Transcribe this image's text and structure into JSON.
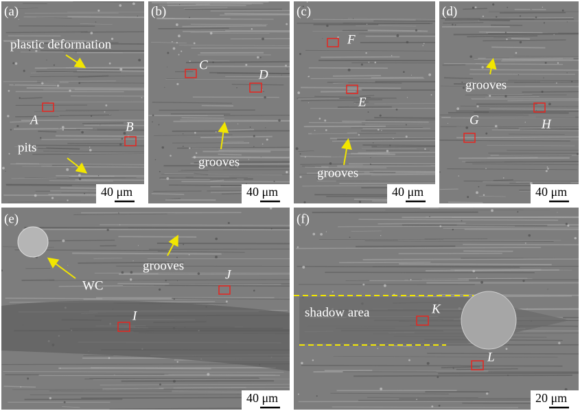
{
  "panels": [
    {
      "label": "(a)",
      "scale_bar": "40 μm",
      "annotations": [
        "plastic deformation",
        "pits"
      ],
      "points": [
        "A",
        "B"
      ]
    },
    {
      "label": "(b)",
      "scale_bar": "40 μm",
      "annotations": [
        "grooves"
      ],
      "points": [
        "C",
        "D"
      ]
    },
    {
      "label": "(c)",
      "scale_bar": "40 μm",
      "annotations": [
        "grooves"
      ],
      "points": [
        "F",
        "E"
      ]
    },
    {
      "label": "(d)",
      "scale_bar": "40 μm",
      "annotations": [
        "grooves"
      ],
      "points": [
        "G",
        "H"
      ]
    },
    {
      "label": "(e)",
      "scale_bar": "40 μm",
      "annotations": [
        "WC",
        "grooves"
      ],
      "points": [
        "J",
        "I"
      ]
    },
    {
      "label": "(f)",
      "scale_bar": "20 μm",
      "annotations": [
        "shadow area"
      ],
      "points": [
        "K",
        "L"
      ]
    }
  ]
}
